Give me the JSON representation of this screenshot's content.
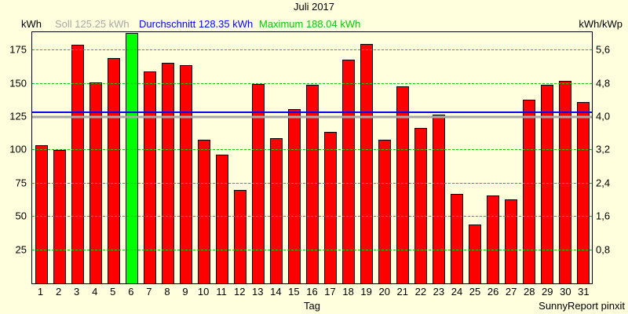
{
  "title": "Juli 2017",
  "header": {
    "left_axis_unit": "kWh",
    "soll_label": "Soll 125.25 kWh",
    "durchschnitt_label": "Durchschnitt 128.35 kWh",
    "maximum_label": "Maximum 188.04 kWh",
    "right_axis_unit": "kWh/kWp"
  },
  "footer": {
    "xlabel": "Tag",
    "credit": "SunnyReport pinxit"
  },
  "colors": {
    "background": "#FFFFDE",
    "bar": "#FF0000",
    "bar_max": "#00FF00",
    "grid": "#00CE00",
    "soll_line": "#A8A8A8",
    "durchschnitt_line": "#0000FF",
    "soll_text": "#A8A8A8",
    "durchschnitt_text": "#0000FF",
    "maximum_text": "#00CC00",
    "border": "#000000"
  },
  "chart_data": {
    "type": "bar",
    "title": "Juli 2017",
    "xlabel": "Tag",
    "ylabel_left": "kWh",
    "ylabel_right": "kWh/kWp",
    "categories": [
      1,
      2,
      3,
      4,
      5,
      6,
      7,
      8,
      9,
      10,
      11,
      12,
      13,
      14,
      15,
      16,
      17,
      18,
      19,
      20,
      21,
      22,
      23,
      24,
      25,
      26,
      27,
      28,
      29,
      30,
      31
    ],
    "values": [
      104,
      100,
      179,
      151,
      169,
      188.04,
      159,
      166,
      164,
      108,
      97,
      70,
      150,
      109,
      131,
      149,
      114,
      168,
      180,
      108,
      148,
      117,
      127,
      67,
      44,
      66,
      63,
      138,
      149,
      152,
      136
    ],
    "maximum_day": 6,
    "soll": 125.25,
    "durchschnitt": 128.35,
    "maximum": 188.04,
    "ylim_left": [
      0,
      188.7
    ],
    "left_ticks": [
      "25",
      "50",
      "75",
      "100",
      "125",
      "150",
      "175"
    ],
    "left_tick_values": [
      25,
      50,
      75,
      100,
      125,
      150,
      175
    ],
    "right_ticks": [
      "0,8",
      "1,6",
      "2,4",
      "3,2",
      "4,0",
      "4,8",
      "5,6"
    ],
    "grid": true,
    "legend_position": "top"
  }
}
